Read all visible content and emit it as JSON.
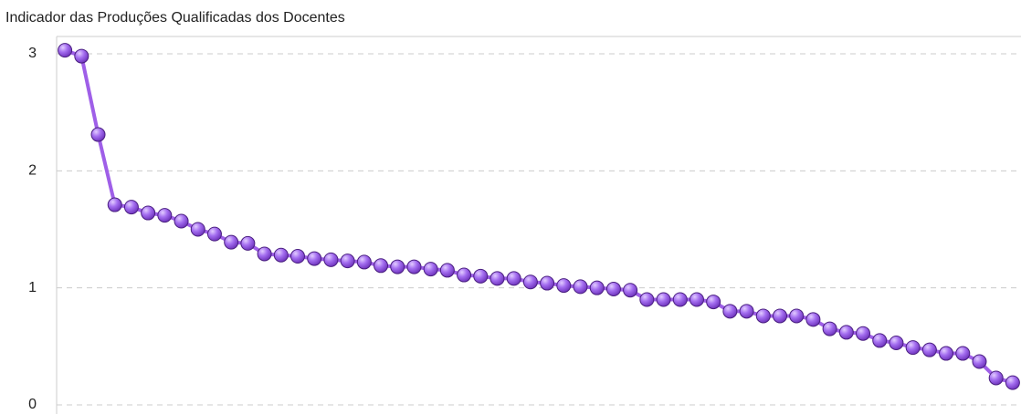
{
  "chart_data": {
    "type": "line",
    "title": "Indicador das Produções Qualificadas dos Docentes",
    "series": [
      {
        "color": "#9f5fe8",
        "values": [
          3.03,
          2.98,
          2.31,
          1.71,
          1.69,
          1.64,
          1.62,
          1.57,
          1.5,
          1.46,
          1.39,
          1.38,
          1.29,
          1.28,
          1.27,
          1.25,
          1.24,
          1.23,
          1.22,
          1.19,
          1.18,
          1.18,
          1.16,
          1.15,
          1.11,
          1.1,
          1.08,
          1.08,
          1.05,
          1.04,
          1.02,
          1.01,
          1.0,
          0.99,
          0.98,
          0.9,
          0.9,
          0.9,
          0.9,
          0.88,
          0.8,
          0.8,
          0.76,
          0.76,
          0.76,
          0.73,
          0.65,
          0.62,
          0.61,
          0.55,
          0.53,
          0.49,
          0.47,
          0.44,
          0.44,
          0.37,
          0.23,
          0.19
        ]
      }
    ],
    "ylim": [
      0,
      3
    ],
    "yticks": [
      0,
      1,
      2,
      3
    ],
    "grid": true
  }
}
